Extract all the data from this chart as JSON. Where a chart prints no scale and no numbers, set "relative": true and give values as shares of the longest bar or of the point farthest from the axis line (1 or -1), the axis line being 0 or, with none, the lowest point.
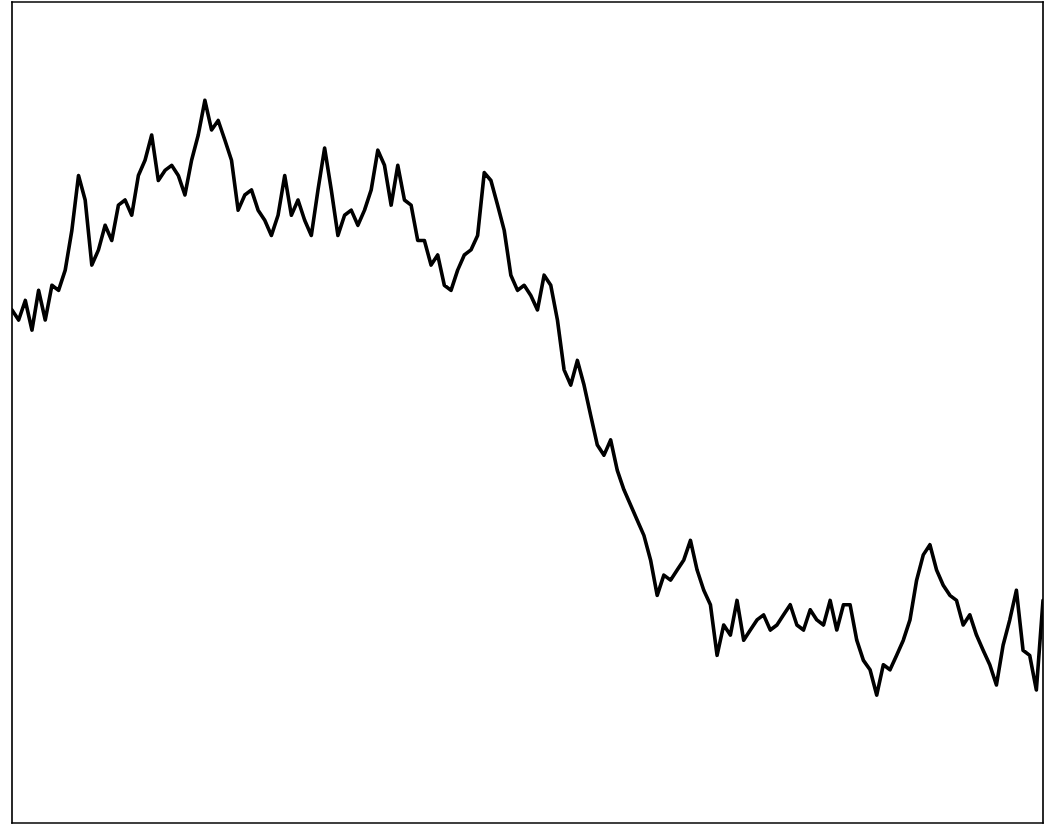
{
  "chart_data": {
    "type": "line",
    "relative": true,
    "tick_labels": false,
    "categories": [
      null,
      null,
      null,
      null,
      null,
      null,
      null,
      null,
      null,
      null,
      null,
      null,
      null,
      null,
      null,
      null,
      null,
      null,
      null,
      null,
      null,
      null,
      null,
      null,
      null,
      null,
      null,
      null,
      null,
      null,
      null,
      null,
      null,
      null,
      null,
      null,
      null,
      null,
      null,
      null,
      null,
      null,
      null,
      null,
      null,
      null,
      null,
      null,
      null,
      null,
      null,
      null,
      null,
      null,
      null,
      null,
      null,
      null,
      null,
      null,
      null,
      null,
      null,
      null,
      null,
      null,
      null,
      null,
      null,
      null,
      null,
      null,
      null,
      null,
      null,
      null,
      null,
      null,
      null,
      null,
      null,
      null,
      null,
      null,
      null,
      null,
      null,
      null,
      null,
      null,
      null,
      null,
      null,
      null,
      null,
      null,
      null,
      null,
      null,
      null,
      null,
      null,
      null,
      null,
      null,
      null,
      null,
      null,
      null,
      null,
      null,
      null,
      null,
      null,
      null,
      null,
      null,
      null,
      null,
      null,
      null,
      null,
      null,
      null,
      null,
      null,
      null,
      null,
      null,
      null,
      null,
      null,
      null,
      null,
      null,
      null,
      null,
      null,
      null,
      null,
      null,
      null,
      null,
      null,
      null,
      null,
      null,
      null,
      null,
      null,
      null,
      null,
      null,
      null,
      null,
      null
    ],
    "series": [
      {
        "color": "#000000",
        "values": [
          0.71,
          0.696,
          0.723,
          0.682,
          0.737,
          0.696,
          0.744,
          0.737,
          0.765,
          0.82,
          0.896,
          0.862,
          0.772,
          0.793,
          0.827,
          0.806,
          0.855,
          0.862,
          0.841,
          0.896,
          0.917,
          0.952,
          0.889,
          0.903,
          0.91,
          0.896,
          0.869,
          0.917,
          0.952,
          1.0,
          0.959,
          0.972,
          0.945,
          0.917,
          0.848,
          0.869,
          0.876,
          0.848,
          0.834,
          0.813,
          0.841,
          0.896,
          0.841,
          0.862,
          0.834,
          0.813,
          0.876,
          0.934,
          0.876,
          0.813,
          0.841,
          0.848,
          0.827,
          0.848,
          0.876,
          0.931,
          0.91,
          0.855,
          0.91,
          0.862,
          0.855,
          0.806,
          0.806,
          0.772,
          0.786,
          0.744,
          0.737,
          0.765,
          0.786,
          0.793,
          0.813,
          0.9,
          0.889,
          0.855,
          0.82,
          0.758,
          0.737,
          0.744,
          0.73,
          0.71,
          0.758,
          0.744,
          0.696,
          0.627,
          0.606,
          0.64,
          0.606,
          0.564,
          0.523,
          0.509,
          0.53,
          0.488,
          0.461,
          0.44,
          0.419,
          0.398,
          0.364,
          0.315,
          0.343,
          0.336,
          0.35,
          0.364,
          0.391,
          0.35,
          0.322,
          0.302,
          0.232,
          0.274,
          0.26,
          0.308,
          0.253,
          0.267,
          0.281,
          0.288,
          0.267,
          0.274,
          0.288,
          0.302,
          0.274,
          0.267,
          0.295,
          0.281,
          0.274,
          0.308,
          0.267,
          0.302,
          0.302,
          0.253,
          0.225,
          0.212,
          0.177,
          0.219,
          0.212,
          0.232,
          0.253,
          0.281,
          0.336,
          0.371,
          0.385,
          0.35,
          0.329,
          0.315,
          0.308,
          0.274,
          0.288,
          0.26,
          0.239,
          0.219,
          0.191,
          0.246,
          0.281,
          0.322,
          0.239,
          0.232,
          0.184,
          0.308
        ]
      }
    ]
  }
}
